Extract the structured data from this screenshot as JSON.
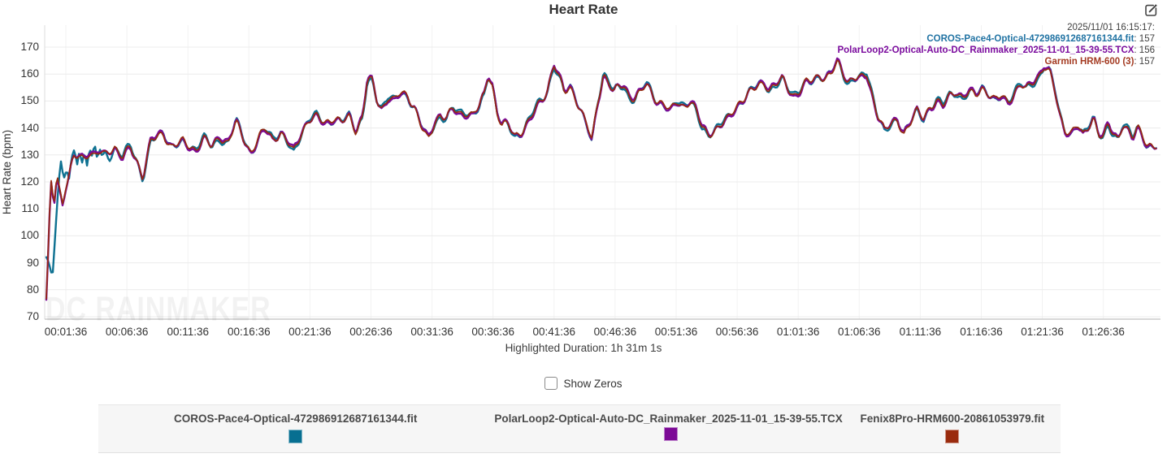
{
  "header": {
    "title": "Heart Rate"
  },
  "overlay_legend": {
    "timestamp": "2025/11/01 16:15:17:",
    "entries": [
      {
        "label": "COROS-Pace4-Optical-472986912687161344.fit",
        "value": "157",
        "color": "#2173a3"
      },
      {
        "label": "PolarLoop2-Optical-Auto-DC_Rainmaker_2025-11-01_15-39-55.TCX",
        "value": "156",
        "color": "#7b0c9e"
      },
      {
        "label": "Garmin HRM-600 (3)",
        "value": "157",
        "color": "#a43b22"
      }
    ]
  },
  "footer": {
    "duration_text": "Highlighted Duration: 1h 31m 1s",
    "show_zeros_label": "Show Zeros"
  },
  "bottom_legend": {
    "items": [
      {
        "label": "COROS-Pace4-Optical-472986912687161344.fit",
        "color": "#076f91"
      },
      {
        "label": "PolarLoop2-Optical-Auto-DC_Rainmaker_2025-11-01_15-39-55.TCX",
        "color": "#7c0a96"
      },
      {
        "label": "Fenix8Pro-HRM600-20861053979.fit",
        "color": "#9a2b0e"
      }
    ]
  },
  "watermark": "DC RAINMAKER",
  "chart_data": {
    "type": "line",
    "title": "Heart Rate",
    "xlabel": "",
    "ylabel": "Heart Rate (bpm)",
    "ylim": [
      70,
      170
    ],
    "y_ticks": [
      170,
      160,
      150,
      140,
      130,
      120,
      110,
      100,
      90,
      80,
      70
    ],
    "x_tick_labels": [
      "00:01:36",
      "00:06:36",
      "00:11:36",
      "00:16:36",
      "00:21:36",
      "00:26:36",
      "00:31:36",
      "00:36:36",
      "00:41:36",
      "00:46:36",
      "00:51:36",
      "00:56:36",
      "01:01:36",
      "01:06:36",
      "01:11:36",
      "01:16:36",
      "01:21:36",
      "01:26:36"
    ],
    "x_tick_seconds": [
      96,
      396,
      696,
      996,
      1296,
      1596,
      1896,
      2196,
      2496,
      2796,
      3096,
      3396,
      3696,
      3996,
      4296,
      4596,
      4896,
      5196
    ],
    "duration_seconds": 5461,
    "grid": true,
    "legend_position": "top-right",
    "base_points": [
      [
        0,
        76
      ],
      [
        12,
        98
      ],
      [
        22,
        121
      ],
      [
        38,
        113
      ],
      [
        52,
        124
      ],
      [
        66,
        117
      ],
      [
        80,
        112
      ],
      [
        95,
        118
      ],
      [
        112,
        122
      ],
      [
        135,
        129
      ],
      [
        160,
        130
      ],
      [
        185,
        129
      ],
      [
        210,
        131
      ],
      [
        235,
        129
      ],
      [
        260,
        131
      ],
      [
        285,
        130
      ],
      [
        310,
        132
      ],
      [
        335,
        133
      ],
      [
        375,
        129
      ],
      [
        414,
        133
      ],
      [
        445,
        128
      ],
      [
        474,
        122
      ],
      [
        514,
        135
      ],
      [
        574,
        138
      ],
      [
        614,
        133
      ],
      [
        673,
        135
      ],
      [
        733,
        132
      ],
      [
        773,
        136
      ],
      [
        813,
        133
      ],
      [
        853,
        137
      ],
      [
        893,
        134
      ],
      [
        932,
        142
      ],
      [
        972,
        136
      ],
      [
        1004,
        131
      ],
      [
        1052,
        137
      ],
      [
        1076,
        140
      ],
      [
        1112,
        136
      ],
      [
        1152,
        138
      ],
      [
        1191,
        134
      ],
      [
        1215,
        131
      ],
      [
        1251,
        138
      ],
      [
        1291,
        143
      ],
      [
        1331,
        144
      ],
      [
        1371,
        142
      ],
      [
        1411,
        144
      ],
      [
        1450,
        142
      ],
      [
        1490,
        144
      ],
      [
        1522,
        139
      ],
      [
        1554,
        144
      ],
      [
        1578,
        158
      ],
      [
        1602,
        157
      ],
      [
        1626,
        150
      ],
      [
        1650,
        147
      ],
      [
        1682,
        152
      ],
      [
        1710,
        150
      ],
      [
        1741,
        153
      ],
      [
        1777,
        152
      ],
      [
        1809,
        148
      ],
      [
        1841,
        141
      ],
      [
        1877,
        135
      ],
      [
        1909,
        142
      ],
      [
        1937,
        145
      ],
      [
        1968,
        144
      ],
      [
        2000,
        147
      ],
      [
        2032,
        145
      ],
      [
        2064,
        146
      ],
      [
        2096,
        145
      ],
      [
        2128,
        148
      ],
      [
        2152,
        152
      ],
      [
        2172,
        160
      ],
      [
        2192,
        156
      ],
      [
        2215,
        146
      ],
      [
        2239,
        141
      ],
      [
        2271,
        141
      ],
      [
        2303,
        137
      ],
      [
        2335,
        139
      ],
      [
        2367,
        142
      ],
      [
        2399,
        146
      ],
      [
        2431,
        150
      ],
      [
        2463,
        154
      ],
      [
        2495,
        164
      ],
      [
        2518,
        159
      ],
      [
        2546,
        153
      ],
      [
        2574,
        155
      ],
      [
        2598,
        152
      ],
      [
        2630,
        146
      ],
      [
        2658,
        141
      ],
      [
        2682,
        135
      ],
      [
        2710,
        150
      ],
      [
        2738,
        160
      ],
      [
        2765,
        157
      ],
      [
        2789,
        153
      ],
      [
        2813,
        155
      ],
      [
        2837,
        156
      ],
      [
        2865,
        152
      ],
      [
        2893,
        151
      ],
      [
        2921,
        153
      ],
      [
        2949,
        156
      ],
      [
        2977,
        153
      ],
      [
        3005,
        150
      ],
      [
        3037,
        149
      ],
      [
        3068,
        146
      ],
      [
        3100,
        150
      ],
      [
        3132,
        148
      ],
      [
        3164,
        150
      ],
      [
        3196,
        146
      ],
      [
        3224,
        140
      ],
      [
        3252,
        138
      ],
      [
        3284,
        139
      ],
      [
        3316,
        141
      ],
      [
        3348,
        143
      ],
      [
        3379,
        147
      ],
      [
        3411,
        150
      ],
      [
        3443,
        152
      ],
      [
        3475,
        154
      ],
      [
        3507,
        156
      ],
      [
        3531,
        157
      ],
      [
        3555,
        154
      ],
      [
        3587,
        156
      ],
      [
        3618,
        158
      ],
      [
        3646,
        155
      ],
      [
        3674,
        152
      ],
      [
        3706,
        154
      ],
      [
        3738,
        157
      ],
      [
        3770,
        158
      ],
      [
        3802,
        160
      ],
      [
        3830,
        158
      ],
      [
        3858,
        160
      ],
      [
        3890,
        164
      ],
      [
        3914,
        161
      ],
      [
        3941,
        157
      ],
      [
        3969,
        159
      ],
      [
        4001,
        158
      ],
      [
        4033,
        160
      ],
      [
        4061,
        152
      ],
      [
        4089,
        145
      ],
      [
        4120,
        139
      ],
      [
        4152,
        141
      ],
      [
        4184,
        143
      ],
      [
        4216,
        138
      ],
      [
        4248,
        142
      ],
      [
        4280,
        146
      ],
      [
        4312,
        144
      ],
      [
        4343,
        148
      ],
      [
        4375,
        150
      ],
      [
        4407,
        148
      ],
      [
        4439,
        152
      ],
      [
        4471,
        154
      ],
      [
        4503,
        151
      ],
      [
        4535,
        153
      ],
      [
        4567,
        152
      ],
      [
        4598,
        155
      ],
      [
        4630,
        153
      ],
      [
        4662,
        150
      ],
      [
        4694,
        152
      ],
      [
        4726,
        150
      ],
      [
        4758,
        153
      ],
      [
        4790,
        156
      ],
      [
        4817,
        154
      ],
      [
        4845,
        157
      ],
      [
        4877,
        159
      ],
      [
        4905,
        163
      ],
      [
        4933,
        160
      ],
      [
        4957,
        154
      ],
      [
        4981,
        145
      ],
      [
        5005,
        140
      ],
      [
        5037,
        138
      ],
      [
        5069,
        141
      ],
      [
        5096,
        137
      ],
      [
        5124,
        141
      ],
      [
        5148,
        144
      ],
      [
        5172,
        138
      ],
      [
        5196,
        136
      ],
      [
        5220,
        141
      ],
      [
        5244,
        138
      ],
      [
        5268,
        136
      ],
      [
        5292,
        142
      ],
      [
        5316,
        139
      ],
      [
        5340,
        136
      ],
      [
        5364,
        140
      ],
      [
        5388,
        138
      ],
      [
        5412,
        134
      ],
      [
        5461,
        133
      ]
    ],
    "series": [
      {
        "name": "COROS-Pace4-Optical-472986912687161344.fit",
        "color": "#0e7191",
        "current_value": 157,
        "stroke_width": 2.4,
        "wobble": [
          0.8,
          29,
          0.5
        ],
        "merge_t": 335,
        "override_points": [
          [
            0,
            91
          ],
          [
            15,
            87
          ],
          [
            30,
            84
          ],
          [
            45,
            103
          ],
          [
            60,
            119
          ],
          [
            72,
            127
          ],
          [
            85,
            122
          ],
          [
            100,
            126
          ],
          [
            112,
            121
          ],
          [
            125,
            128
          ],
          [
            140,
            133
          ],
          [
            150,
            127
          ],
          [
            162,
            132
          ],
          [
            175,
            126
          ],
          [
            188,
            131
          ],
          [
            200,
            127
          ],
          [
            212,
            133
          ],
          [
            225,
            128
          ],
          [
            238,
            132
          ],
          [
            250,
            128
          ],
          [
            262,
            133
          ],
          [
            275,
            129
          ],
          [
            290,
            131
          ],
          [
            310,
            130
          ],
          [
            335,
            133
          ]
        ]
      },
      {
        "name": "PolarLoop2-Optical-Auto-DC_Rainmaker_2025-11-01_15-39-55.TCX",
        "color": "#7c0a96",
        "current_value": 156,
        "stroke_width": 2.4,
        "wobble": [
          0.7,
          53,
          3.8
        ]
      },
      {
        "name": "Fenix8Pro-HRM600-20861053979.fit",
        "color": "#942a10",
        "current_value": 157,
        "stroke_width": 1.7,
        "wobble": [
          0,
          1,
          0
        ]
      }
    ],
    "render": {
      "jitter": [
        [
          1.15,
          8.7,
          0
        ],
        [
          0.75,
          21.3,
          2
        ]
      ],
      "sample_step_s": 8
    }
  }
}
